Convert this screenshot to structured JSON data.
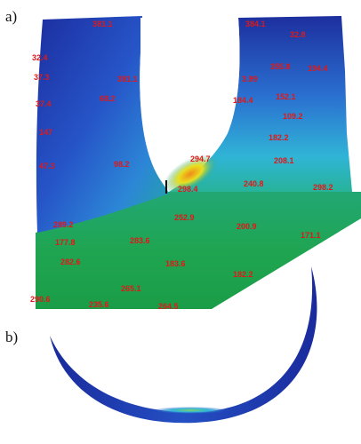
{
  "panels": {
    "a": {
      "label": "a)"
    },
    "b": {
      "label": "b)"
    }
  },
  "colors": {
    "deep_blue": "#1a2a9c",
    "blue": "#2a5fd0",
    "cyan": "#2fb6d8",
    "teal": "#23a88a",
    "green": "#1fa84e",
    "yellow": "#e8e020",
    "orange": "#f08a1a",
    "label_red": "#e01818"
  },
  "value_labels": [
    {
      "id": "v1",
      "text": "381.1"
    },
    {
      "id": "v2",
      "text": "384.1"
    },
    {
      "id": "v3",
      "text": "32.8"
    },
    {
      "id": "v4",
      "text": "32.4"
    },
    {
      "id": "v5",
      "text": "355.8"
    },
    {
      "id": "v6",
      "text": "194.4"
    },
    {
      "id": "v7",
      "text": "37.3"
    },
    {
      "id": "v8",
      "text": "381.1"
    },
    {
      "id": "v9",
      "text": "68.2"
    },
    {
      "id": "v10",
      "text": "3.99"
    },
    {
      "id": "v11",
      "text": "184.4"
    },
    {
      "id": "v12",
      "text": "152.1"
    },
    {
      "id": "v13",
      "text": "37.4"
    },
    {
      "id": "v14",
      "text": "109.2"
    },
    {
      "id": "v15",
      "text": "182.2"
    },
    {
      "id": "v16",
      "text": "147"
    },
    {
      "id": "v17",
      "text": "98.2"
    },
    {
      "id": "v18",
      "text": "294.7"
    },
    {
      "id": "v19",
      "text": "208.1"
    },
    {
      "id": "v20",
      "text": "47.3"
    },
    {
      "id": "v21",
      "text": "298.4"
    },
    {
      "id": "v22",
      "text": "240.8"
    },
    {
      "id": "v23",
      "text": "298.2"
    },
    {
      "id": "v24",
      "text": "252.9"
    },
    {
      "id": "v25",
      "text": "200.9"
    },
    {
      "id": "v26",
      "text": "171.1"
    },
    {
      "id": "v27",
      "text": "283.6"
    },
    {
      "id": "v28",
      "text": "289.2"
    },
    {
      "id": "v29",
      "text": "177.8"
    },
    {
      "id": "v30",
      "text": "282.6"
    },
    {
      "id": "v31",
      "text": "183.6"
    },
    {
      "id": "v32",
      "text": "182.2"
    },
    {
      "id": "v33",
      "text": "265.1"
    },
    {
      "id": "v34",
      "text": "290.6"
    },
    {
      "id": "v35",
      "text": "235.6"
    },
    {
      "id": "v36",
      "text": "264.5"
    }
  ]
}
